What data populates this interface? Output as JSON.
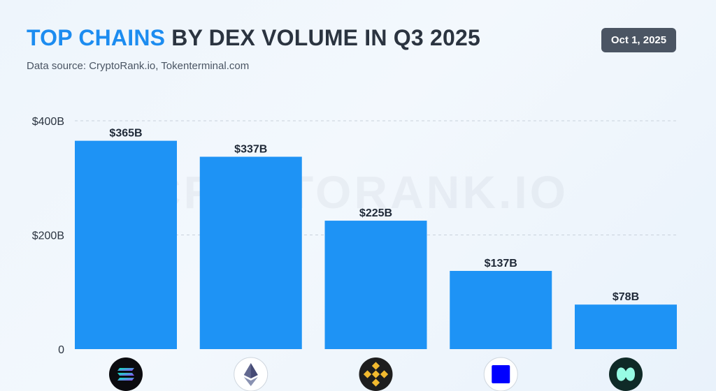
{
  "header": {
    "title_highlight": "TOP CHAINS",
    "title_rest": " BY DEX VOLUME IN Q3 2025",
    "subtitle": "Data source: CryptoRank.io, Tokenterminal.com",
    "date": "Oct 1, 2025",
    "watermark": "CRYPTORANK.IO"
  },
  "colors": {
    "bar": "#1e93f5",
    "title_highlight": "#1c8cf0",
    "grid": "#c9d2dc"
  },
  "chart_data": {
    "type": "bar",
    "title": "TOP CHAINS BY DEX VOLUME IN Q3 2025",
    "xlabel": "",
    "ylabel": "",
    "ylim": [
      0,
      400
    ],
    "yticks": [
      {
        "value": 0,
        "label": "0"
      },
      {
        "value": 200,
        "label": "$200B"
      },
      {
        "value": 400,
        "label": "$400B"
      }
    ],
    "categories": [
      "solana-logo-icon",
      "ethereum-logo-icon",
      "bnb-chain-logo-icon",
      "base-logo-icon",
      "hyperliquid-logo-icon"
    ],
    "values": [
      365,
      337,
      225,
      137,
      78
    ],
    "value_labels": [
      "$365B",
      "$337B",
      "$225B",
      "$137B",
      "$78B"
    ]
  }
}
